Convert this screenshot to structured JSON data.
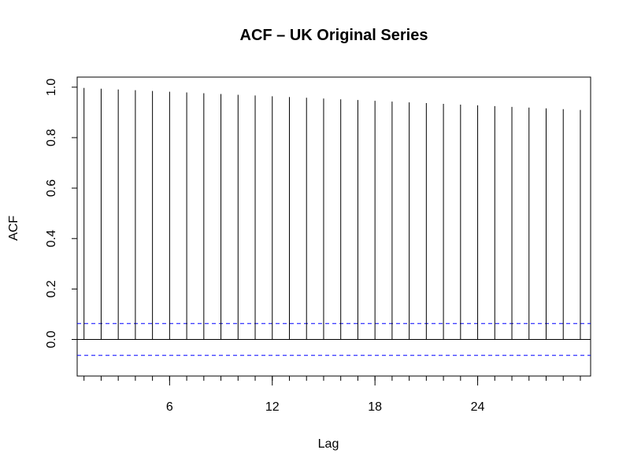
{
  "chart_data": {
    "type": "bar",
    "title": "ACF – UK Original Series",
    "xlabel": "Lag",
    "ylabel": "ACF",
    "x": [
      1,
      2,
      3,
      4,
      5,
      6,
      7,
      8,
      9,
      10,
      11,
      12,
      13,
      14,
      15,
      16,
      17,
      18,
      19,
      20,
      21,
      22,
      23,
      24,
      25,
      26,
      27,
      28,
      29,
      30
    ],
    "values": [
      0.997,
      0.994,
      0.991,
      0.988,
      0.985,
      0.982,
      0.979,
      0.976,
      0.973,
      0.97,
      0.967,
      0.964,
      0.961,
      0.958,
      0.955,
      0.952,
      0.949,
      0.946,
      0.943,
      0.94,
      0.937,
      0.934,
      0.931,
      0.928,
      0.925,
      0.922,
      0.919,
      0.916,
      0.913,
      0.91
    ],
    "confidence_band": [
      0.063,
      -0.063
    ],
    "xlim": [
      0.6,
      30.6
    ],
    "ylim": [
      -0.145,
      1.04
    ],
    "x_ticks": [
      6,
      12,
      18,
      24
    ],
    "y_ticks": [
      0.0,
      0.2,
      0.4,
      0.6,
      0.8,
      1.0
    ],
    "y_tick_labels": [
      "0.0",
      "0.2",
      "0.4",
      "0.6",
      "0.8",
      "1.0"
    ],
    "colors": {
      "bars": "#000000",
      "confidence_band": "#0000FF",
      "zero_line": "#000000"
    },
    "grid": false
  }
}
